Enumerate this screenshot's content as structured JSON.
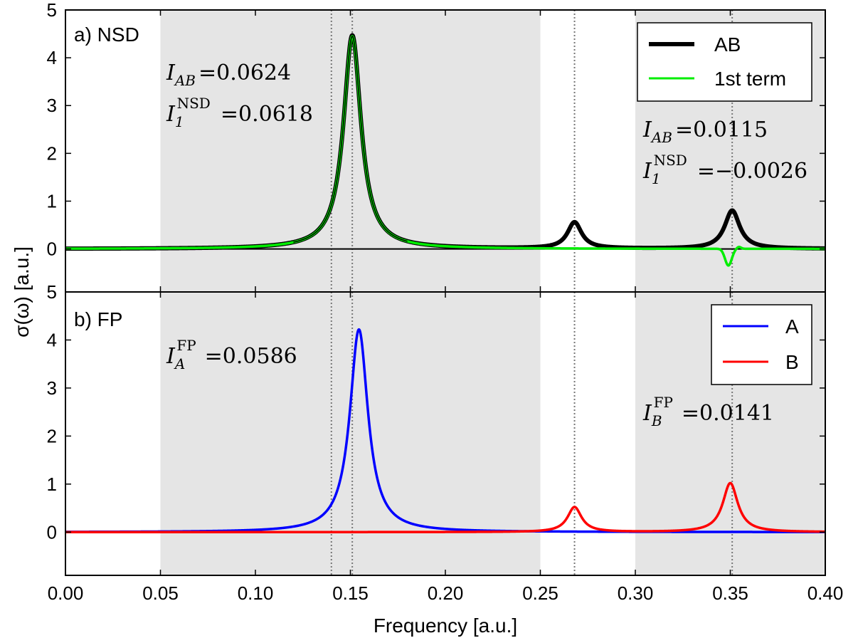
{
  "chart_data": {
    "type": "line",
    "xlabel": "Frequency [a.u.]",
    "ylabel": "σ(ω) [a.u.]",
    "xlim": [
      0.0,
      0.4
    ],
    "x_ticks": [
      "0.00",
      "0.05",
      "0.10",
      "0.15",
      "0.20",
      "0.25",
      "0.30",
      "0.35",
      "0.40"
    ],
    "shaded_regions": [
      [
        0.05,
        0.25
      ],
      [
        0.3,
        0.4
      ]
    ],
    "vlines": [
      0.14,
      0.151,
      0.268,
      0.351
    ],
    "colors": {
      "AB": "#000000",
      "first_term": "#00ee00",
      "A": "#0000ff",
      "B": "#ff0000",
      "shade": "#e5e5e5",
      "vline": "#777777"
    },
    "panels": [
      {
        "label": "a) NSD",
        "ylim": [
          -0.9,
          5
        ],
        "y_ticks": [
          "0",
          "1",
          "2",
          "3",
          "4",
          "5"
        ],
        "legend_position": "top-right",
        "series": [
          {
            "key": "AB",
            "name": "AB",
            "peaks": [
              [
                0.151,
                4.47,
                0.0056
              ],
              [
                0.268,
                0.55,
                0.0045
              ],
              [
                0.351,
                0.8,
                0.0048
              ]
            ],
            "style": "thick"
          },
          {
            "key": "first_term",
            "name": "1st term",
            "peaks": [
              [
                0.151,
                4.45,
                0.0056
              ]
            ],
            "dip": [
              0.349,
              -0.35,
              0.0025
            ],
            "style": "thin"
          }
        ],
        "annotations": [
          {
            "base": "I",
            "sub": "AB",
            "value": "=0.0624"
          },
          {
            "base": "I",
            "sub": "1",
            "sup": "NSD",
            "value": "=0.0618"
          },
          {
            "base": "I",
            "sub": "AB",
            "value": "=0.0115"
          },
          {
            "base": "I",
            "sub": "1",
            "sup": "NSD",
            "value": "=−0.0026"
          }
        ]
      },
      {
        "label": "b) FP",
        "ylim": [
          -0.9,
          5
        ],
        "y_ticks": [
          "0",
          "1",
          "2",
          "3",
          "4",
          "5"
        ],
        "legend_position": "top-right",
        "series": [
          {
            "key": "A",
            "name": "A",
            "peaks": [
              [
                0.1545,
                4.22,
                0.0058
              ]
            ],
            "style": "thin"
          },
          {
            "key": "B",
            "name": "B",
            "peaks": [
              [
                0.268,
                0.52,
                0.0045
              ],
              [
                0.35,
                1.02,
                0.0048
              ]
            ],
            "style": "thin"
          }
        ],
        "annotations": [
          {
            "base": "I",
            "sub": "A",
            "sup": "FP",
            "value": "=0.0586"
          },
          {
            "base": "I",
            "sub": "B",
            "sup": "FP",
            "value": "=0.0141"
          }
        ]
      }
    ]
  }
}
